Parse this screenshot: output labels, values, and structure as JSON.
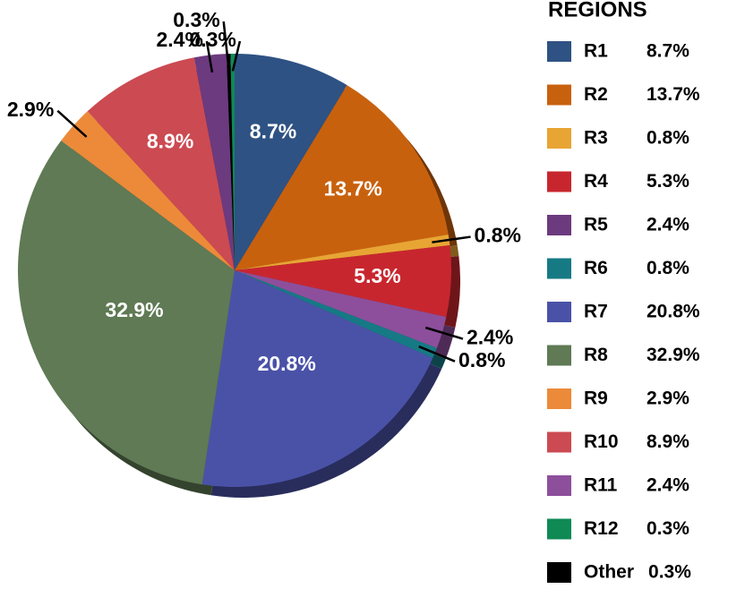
{
  "chart_data": {
    "type": "pie",
    "title": "REGIONS",
    "series": [
      {
        "name": "R1",
        "color": "#2e5283",
        "values": [
          8.7
        ],
        "value_labels": [
          "8.7%"
        ]
      },
      {
        "name": "R2",
        "color": "#c8610e",
        "values": [
          13.7
        ],
        "value_labels": [
          "13.7%"
        ]
      },
      {
        "name": "R3",
        "color": "#e8a534",
        "values": [
          0.8
        ],
        "value_labels": [
          "0.8%"
        ]
      },
      {
        "name": "R4",
        "color": "#c8262f",
        "values": [
          5.3
        ],
        "value_labels": [
          "5.3%"
        ]
      },
      {
        "name": "R5",
        "color": "#6c3a7e",
        "values": [
          2.4
        ],
        "value_labels": [
          "2.4%"
        ]
      },
      {
        "name": "R6",
        "color": "#167a85",
        "values": [
          0.8
        ],
        "value_labels": [
          "0.8%"
        ]
      },
      {
        "name": "R7",
        "color": "#4a52a8",
        "values": [
          20.8
        ],
        "value_labels": [
          "20.8%"
        ]
      },
      {
        "name": "R8",
        "color": "#5f7a54",
        "values": [
          32.9
        ],
        "value_labels": [
          "32.9%"
        ]
      },
      {
        "name": "R9",
        "color": "#ec8a3a",
        "values": [
          2.9
        ],
        "value_labels": [
          "2.9%"
        ]
      },
      {
        "name": "R10",
        "color": "#cc4a52",
        "values": [
          8.9
        ],
        "value_labels": [
          "8.9%"
        ]
      },
      {
        "name": "R11",
        "color": "#8d4f9c",
        "values": [
          2.4
        ],
        "value_labels": [
          "2.4%"
        ]
      },
      {
        "name": "R12",
        "color": "#0f8a55",
        "values": [
          0.3
        ],
        "value_labels": [
          "0.3%"
        ]
      },
      {
        "name": "Other",
        "color": "#000000",
        "values": [
          0.3
        ],
        "value_labels": [
          "0.3%"
        ]
      }
    ]
  }
}
